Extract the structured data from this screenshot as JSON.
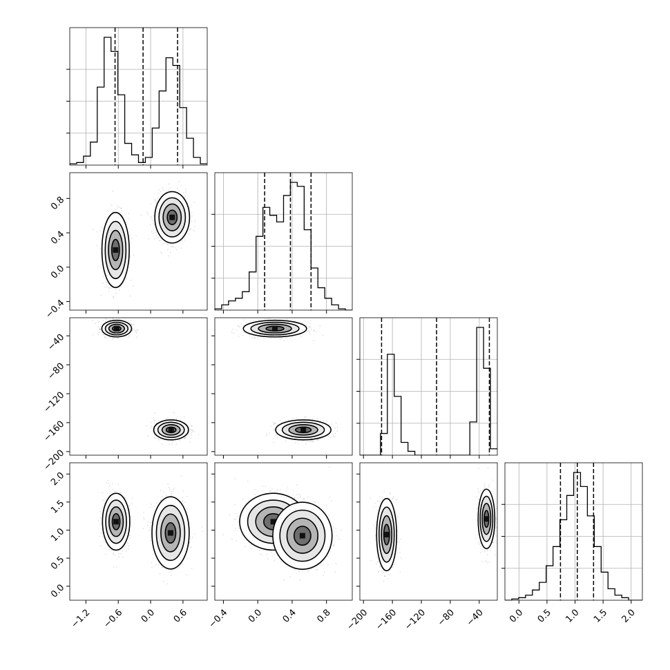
{
  "chart_data": {
    "type": "corner",
    "parameters": [
      {
        "ticks": [
          "−1.2",
          "−0.6",
          "0.0",
          "0.6"
        ],
        "tick_values": [
          -1.2,
          -0.6,
          0.0,
          0.6
        ],
        "range": [
          -1.5,
          1.05
        ],
        "quantiles": [
          -0.66,
          -0.14,
          0.5
        ]
      },
      {
        "ticks": [
          "−0.4",
          "0.0",
          "0.4",
          "0.8"
        ],
        "tick_values": [
          -0.4,
          0.0,
          0.4,
          0.8
        ],
        "range": [
          -0.5,
          1.1
        ],
        "quantiles": [
          0.08,
          0.38,
          0.62
        ]
      },
      {
        "ticks": [
          "−200",
          "−160",
          "−120",
          "−80",
          "−40"
        ],
        "tick_values": [
          -200,
          -160,
          -120,
          -80,
          -40
        ],
        "range": [
          -205,
          -15
        ],
        "quantiles": [
          -175,
          -99,
          -26
        ]
      },
      {
        "ticks": [
          "0.0",
          "0.5",
          "1.0",
          "1.5",
          "2.0"
        ],
        "tick_values": [
          0.0,
          0.5,
          1.0,
          1.5,
          2.0
        ],
        "range": [
          -0.25,
          2.2
        ],
        "quantiles": [
          0.74,
          1.04,
          1.33
        ]
      }
    ],
    "histograms": [
      [
        0.01,
        0.02,
        0.07,
        0.18,
        0.61,
        1.0,
        0.89,
        0.55,
        0.17,
        0.08,
        0.02,
        0.06,
        0.29,
        0.58,
        0.84,
        0.78,
        0.45,
        0.21,
        0.06,
        0.01
      ],
      [
        0.01,
        0.04,
        0.07,
        0.09,
        0.14,
        0.29,
        0.56,
        0.78,
        0.72,
        0.67,
        0.87,
        0.97,
        0.94,
        0.61,
        0.32,
        0.17,
        0.09,
        0.04,
        0.01,
        0.0
      ],
      [
        0.0,
        0.0,
        0.0,
        0.17,
        0.79,
        0.46,
        0.1,
        0.03,
        0.0,
        0.0,
        0.0,
        0.0,
        0.0,
        0.0,
        0.0,
        0.0,
        0.26,
        1.0,
        0.68,
        0.05
      ],
      [
        0.0,
        0.01,
        0.02,
        0.04,
        0.08,
        0.14,
        0.27,
        0.42,
        0.63,
        0.82,
        1.0,
        0.89,
        0.66,
        0.42,
        0.22,
        0.09,
        0.04,
        0.02,
        0.0,
        0.0
      ]
    ],
    "joint_modes": {
      "1_0": [
        {
          "x": -0.65,
          "y": 0.2,
          "sx": 0.11,
          "sy": 0.19,
          "w": 0.5
        },
        {
          "x": 0.4,
          "y": 0.58,
          "sx": 0.14,
          "sy": 0.13,
          "w": 0.5
        }
      ],
      "2_0": [
        {
          "x": -0.63,
          "y": -30,
          "sx": 0.12,
          "sy": 5,
          "w": 0.5
        },
        {
          "x": 0.38,
          "y": -170,
          "sx": 0.14,
          "sy": 6,
          "w": 0.5
        }
      ],
      "2_1": [
        {
          "x": 0.2,
          "y": -30,
          "sx": 0.16,
          "sy": 5,
          "w": 0.5
        },
        {
          "x": 0.53,
          "y": -170,
          "sx": 0.14,
          "sy": 6,
          "w": 0.5
        }
      ],
      "3_0": [
        {
          "x": -0.64,
          "y": 1.15,
          "sx": 0.11,
          "sy": 0.22,
          "w": 0.5
        },
        {
          "x": 0.37,
          "y": 0.95,
          "sx": 0.15,
          "sy": 0.28,
          "w": 0.5
        }
      ],
      "3_1": [
        {
          "x": 0.18,
          "y": 1.15,
          "sx": 0.17,
          "sy": 0.22,
          "w": 0.5
        },
        {
          "x": 0.52,
          "y": 0.9,
          "sx": 0.15,
          "sy": 0.26,
          "w": 0.5
        }
      ],
      "3_2": [
        {
          "x": -168,
          "y": 0.92,
          "sx": 6,
          "sy": 0.28,
          "w": 0.5
        },
        {
          "x": -30,
          "y": 1.2,
          "sx": 5,
          "sy": 0.23,
          "w": 0.5
        }
      ]
    },
    "grid": true,
    "title": "",
    "xlabel": "",
    "ylabel": ""
  },
  "colors": {
    "line": "#000000",
    "grid": "#b0b0b0",
    "scatter": "#000000"
  }
}
